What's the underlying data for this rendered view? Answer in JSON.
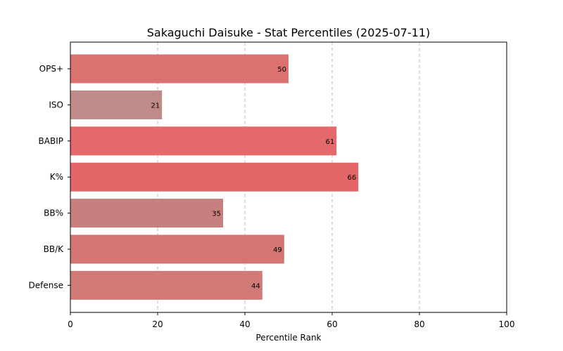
{
  "chart_data": {
    "type": "bar",
    "orientation": "horizontal",
    "title": "Sakaguchi Daisuke - Stat Percentiles (2025-07-11)",
    "xlabel": "Percentile Rank",
    "ylabel": "",
    "xlim": [
      0,
      100
    ],
    "xticks": [
      0,
      20,
      40,
      60,
      80,
      100
    ],
    "grid": "x-dashed",
    "categories": [
      "OPS+",
      "ISO",
      "BABIP",
      "K%",
      "BB%",
      "BB/K",
      "Defense"
    ],
    "values": [
      50,
      21,
      61,
      66,
      35,
      49,
      44
    ],
    "colors": [
      "#dc7270",
      "#c08a88",
      "#e4696a",
      "#e46767",
      "#c8807e",
      "#d37573",
      "#d27a78"
    ]
  }
}
